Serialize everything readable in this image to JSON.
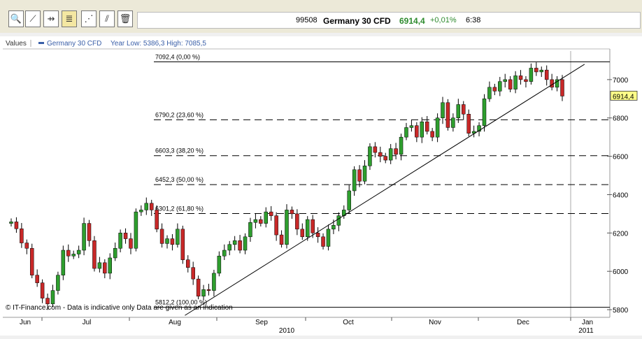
{
  "toolbar": {
    "buttons": [
      {
        "name": "zoom-icon",
        "glyph": "🔍"
      },
      {
        "name": "trendline-icon",
        "glyph": "⟋"
      },
      {
        "name": "horizontal-line-icon",
        "glyph": "⇸"
      },
      {
        "name": "fibonacci-icon",
        "glyph": "≣"
      },
      {
        "name": "channel-icon",
        "glyph": "⋰"
      },
      {
        "name": "parallel-lines-icon",
        "glyph": "⫽"
      },
      {
        "name": "trash-icon",
        "glyph": "🗑"
      }
    ]
  },
  "quote": {
    "code": "99508",
    "name": "Germany 30 CFD",
    "price": "6914,4",
    "change": "+0,01%",
    "time": "6:38"
  },
  "legend": {
    "values_label": "Values",
    "series_name": "Germany 30 CFD",
    "year_range": "Year Low: 5386,3  High: 7085,5"
  },
  "last_price_label": "6914,4",
  "copyright": "© IT-Finance.com - Data is indicative only Data are given as an indication",
  "colors": {
    "up": "#2e9e2e",
    "down": "#c82828",
    "axis": "#999999",
    "last_price_bg": "#ffff88"
  },
  "chart_data": {
    "type": "candlestick",
    "ylim": [
      5760,
      7160
    ],
    "y_ticks": [
      "7000",
      "6800",
      "6600",
      "6400",
      "6200",
      "6000",
      "5800"
    ],
    "x_labels": [
      "Jun",
      "Jul",
      "Aug",
      "Sep",
      "Oct",
      "Nov",
      "Dec",
      "Jan"
    ],
    "year_labels": [
      "2010",
      "2011"
    ],
    "fib_levels": [
      {
        "label": "7092,4 (0,00 %)",
        "value": 7092.4,
        "style": "solid"
      },
      {
        "label": "6790,2 (23,60 %)",
        "value": 6790.2,
        "style": "dashed"
      },
      {
        "label": "6603,3 (38,20 %)",
        "value": 6603.3,
        "style": "dashed"
      },
      {
        "label": "6452,3 (50,00 %)",
        "value": 6452.3,
        "style": "dashed"
      },
      {
        "label": "6301,2 (61,80 %)",
        "value": 6301.2,
        "style": "dashed"
      },
      {
        "label": "5812,2 (100,00 %)",
        "value": 5812.2,
        "style": "solid"
      }
    ],
    "trendline": [
      {
        "date": "2010-08-05",
        "y": 5770
      },
      {
        "date": "2011-01-10",
        "y": 7080
      }
    ],
    "candles": [
      [
        6250,
        6258
      ],
      [
        6258,
        6222
      ],
      [
        6222,
        6148
      ],
      [
        6148,
        6120
      ],
      [
        6120,
        5980
      ],
      [
        5980,
        5940
      ],
      [
        5940,
        5860
      ],
      [
        5860,
        5830
      ],
      [
        5830,
        5900
      ],
      [
        5900,
        5980
      ],
      [
        5980,
        6110
      ],
      [
        6110,
        6080
      ],
      [
        6080,
        6090
      ],
      [
        6090,
        6110
      ],
      [
        6110,
        6250
      ],
      [
        6250,
        6160
      ],
      [
        6160,
        6015
      ],
      [
        6015,
        6045
      ],
      [
        6045,
        5990
      ],
      [
        5990,
        6070
      ],
      [
        6070,
        6120
      ],
      [
        6120,
        6200
      ],
      [
        6200,
        6170
      ],
      [
        6170,
        6120
      ],
      [
        6120,
        6310
      ],
      [
        6310,
        6320
      ],
      [
        6320,
        6355
      ],
      [
        6355,
        6320
      ],
      [
        6320,
        6220
      ],
      [
        6220,
        6145
      ],
      [
        6145,
        6170
      ],
      [
        6170,
        6140
      ],
      [
        6140,
        6220
      ],
      [
        6220,
        6060
      ],
      [
        6060,
        6020
      ],
      [
        6020,
        5960
      ],
      [
        5960,
        5870
      ],
      [
        5870,
        5905
      ],
      [
        5905,
        5900
      ],
      [
        5900,
        5990
      ],
      [
        5990,
        6080
      ],
      [
        6080,
        6110
      ],
      [
        6110,
        6140
      ],
      [
        6140,
        6160
      ],
      [
        6160,
        6110
      ],
      [
        6110,
        6180
      ],
      [
        6180,
        6255
      ],
      [
        6255,
        6270
      ],
      [
        6270,
        6250
      ],
      [
        6250,
        6310
      ],
      [
        6310,
        6290
      ],
      [
        6290,
        6190
      ],
      [
        6190,
        6140
      ],
      [
        6140,
        6320
      ],
      [
        6320,
        6300
      ],
      [
        6300,
        6220
      ],
      [
        6220,
        6180
      ],
      [
        6180,
        6270
      ],
      [
        6270,
        6200
      ],
      [
        6200,
        6180
      ],
      [
        6180,
        6130
      ],
      [
        6130,
        6220
      ],
      [
        6220,
        6240
      ],
      [
        6240,
        6290
      ],
      [
        6290,
        6320
      ],
      [
        6320,
        6420
      ],
      [
        6420,
        6530
      ],
      [
        6530,
        6470
      ],
      [
        6470,
        6550
      ],
      [
        6550,
        6650
      ],
      [
        6650,
        6620
      ],
      [
        6620,
        6600
      ],
      [
        6600,
        6580
      ],
      [
        6580,
        6640
      ],
      [
        6640,
        6610
      ],
      [
        6610,
        6700
      ],
      [
        6700,
        6750
      ],
      [
        6750,
        6760
      ],
      [
        6760,
        6700
      ],
      [
        6700,
        6780
      ],
      [
        6780,
        6730
      ],
      [
        6730,
        6700
      ],
      [
        6700,
        6800
      ],
      [
        6800,
        6880
      ],
      [
        6880,
        6750
      ],
      [
        6750,
        6800
      ],
      [
        6800,
        6870
      ],
      [
        6870,
        6820
      ],
      [
        6820,
        6720
      ],
      [
        6720,
        6730
      ],
      [
        6730,
        6760
      ],
      [
        6760,
        6900
      ],
      [
        6900,
        6960
      ],
      [
        6960,
        6940
      ],
      [
        6940,
        6990
      ],
      [
        6990,
        7000
      ],
      [
        7000,
        6950
      ],
      [
        6950,
        7020
      ],
      [
        7020,
        7000
      ],
      [
        7000,
        6990
      ],
      [
        6990,
        7060
      ],
      [
        7060,
        7040
      ],
      [
        7040,
        7050
      ],
      [
        7050,
        7000
      ],
      [
        7000,
        6960
      ],
      [
        6960,
        7000
      ],
      [
        7000,
        6914
      ]
    ]
  }
}
